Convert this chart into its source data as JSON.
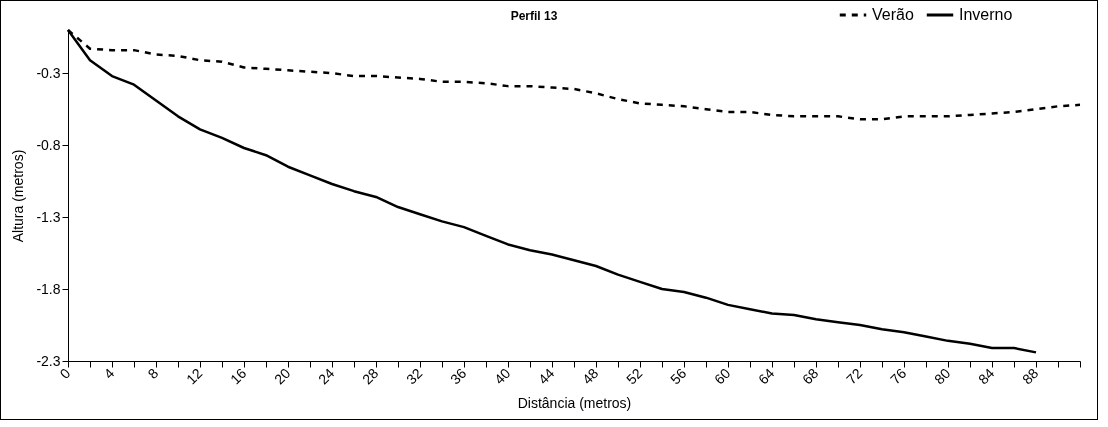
{
  "chart_data": {
    "type": "line",
    "title": "Perfil 13",
    "xlabel": "Distância (metros)",
    "ylabel": "Altura (metros)",
    "x": [
      0,
      2,
      4,
      6,
      8,
      10,
      12,
      14,
      16,
      18,
      20,
      22,
      24,
      26,
      28,
      30,
      32,
      34,
      36,
      38,
      40,
      42,
      44,
      46,
      48,
      50,
      52,
      54,
      56,
      58,
      60,
      62,
      64,
      66,
      68,
      70,
      72,
      74,
      76,
      78,
      80,
      82,
      84,
      86,
      88,
      90,
      92
    ],
    "series": [
      {
        "name": "Verão",
        "color": "#000000",
        "line_style": "dashed",
        "values": [
          0,
          -0.13,
          -0.14,
          -0.14,
          -0.17,
          -0.18,
          -0.21,
          -0.22,
          -0.26,
          -0.27,
          -0.28,
          -0.29,
          -0.3,
          -0.32,
          -0.32,
          -0.33,
          -0.34,
          -0.36,
          -0.36,
          -0.37,
          -0.39,
          -0.39,
          -0.4,
          -0.41,
          -0.44,
          -0.48,
          -0.51,
          -0.52,
          -0.53,
          -0.55,
          -0.57,
          -0.57,
          -0.59,
          -0.6,
          -0.6,
          -0.6,
          -0.62,
          -0.62,
          -0.6,
          -0.6,
          -0.6,
          -0.59,
          -0.58,
          -0.57,
          -0.55,
          -0.53,
          -0.52
        ]
      },
      {
        "name": "Inverno",
        "color": "#000000",
        "line_style": "solid",
        "values": [
          0,
          -0.21,
          -0.32,
          -0.38,
          -0.49,
          -0.6,
          -0.69,
          -0.75,
          -0.82,
          -0.87,
          -0.95,
          -1.01,
          -1.07,
          -1.12,
          -1.16,
          -1.23,
          -1.28,
          -1.33,
          -1.37,
          -1.43,
          -1.49,
          -1.53,
          -1.56,
          -1.6,
          -1.64,
          -1.7,
          -1.75,
          -1.8,
          -1.82,
          -1.86,
          -1.91,
          -1.94,
          -1.97,
          -1.98,
          -2.01,
          -2.03,
          -2.05,
          -2.08,
          -2.1,
          -2.13,
          -2.16,
          -2.18,
          -2.21,
          -2.21,
          -2.24,
          null,
          null
        ]
      }
    ],
    "xlim": [
      0,
      92
    ],
    "xticks": [
      0,
      {
        "value": 2,
        "label": null
      },
      4,
      {
        "value": 6,
        "label": null
      },
      8,
      {
        "value": 10,
        "label": null
      },
      12,
      {
        "value": 14,
        "label": null
      },
      16,
      {
        "value": 18,
        "label": null
      },
      20,
      {
        "value": 22,
        "label": null
      },
      24,
      {
        "value": 26,
        "label": null
      },
      28,
      {
        "value": 30,
        "label": null
      },
      32,
      {
        "value": 34,
        "label": null
      },
      36,
      {
        "value": 38,
        "label": null
      },
      40,
      {
        "value": 42,
        "label": null
      },
      44,
      {
        "value": 46,
        "label": null
      },
      48,
      {
        "value": 50,
        "label": null
      },
      52,
      {
        "value": 54,
        "label": null
      },
      56,
      {
        "value": 58,
        "label": null
      },
      60,
      {
        "value": 62,
        "label": null
      },
      64,
      {
        "value": 66,
        "label": null
      },
      68,
      {
        "value": 70,
        "label": null
      },
      72,
      {
        "value": 74,
        "label": null
      },
      76,
      {
        "value": 78,
        "label": null
      },
      80,
      {
        "value": 82,
        "label": null
      },
      84,
      {
        "value": 86,
        "label": null
      },
      88,
      {
        "value": 90,
        "label": null
      },
      {
        "value": 92,
        "label": null
      }
    ],
    "ylim": [
      -2.3,
      0
    ],
    "yticks": [
      -2.3,
      -1.8,
      -1.3,
      -0.8,
      -0.3
    ],
    "grid": false,
    "legend": "top right",
    "marker": "none"
  }
}
